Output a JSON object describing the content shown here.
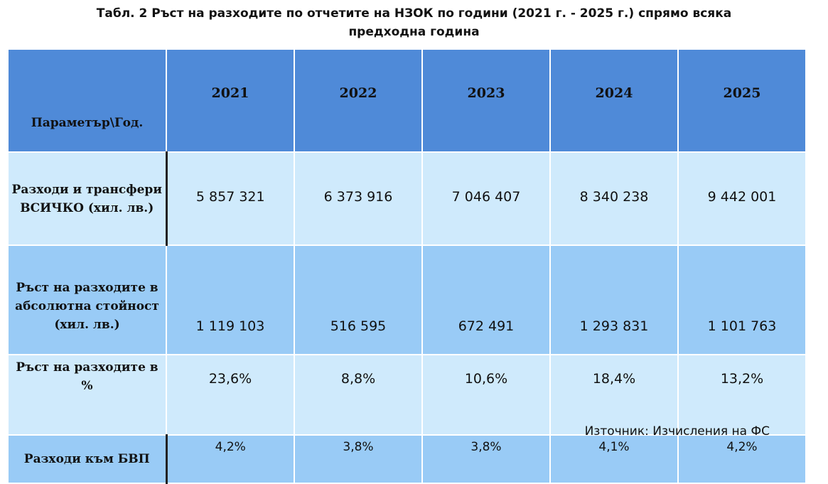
{
  "title": {
    "line1": "Табл. 2 Ръст на разходите по отчетите на НЗОК по години (2021 г. - 2025 г.) спрямо всяка",
    "line2": "предходна година"
  },
  "table": {
    "corner_header": "Параметър\\Год.",
    "years": [
      "2021",
      "2022",
      "2023",
      "2024",
      "2025"
    ],
    "rows": [
      {
        "label": "Разходи и трансфери ВСИЧКО (хил. лв.)",
        "values": [
          "5 857 321",
          "6 373 916",
          "7 046 407",
          "8 340 238",
          "9 442 001"
        ]
      },
      {
        "label": "Ръст на разходите в абсолютна стойност (хил. лв.)",
        "values": [
          "1 119 103",
          "516 595",
          "672 491",
          "1 293 831",
          "1 101 763"
        ]
      },
      {
        "label": "Ръст на разходите в %",
        "values": [
          "23,6%",
          "8,8%",
          "10,6%",
          "18,4%",
          "13,2%"
        ]
      },
      {
        "label": "Разходи към БВП",
        "values": [
          "4,2%",
          "3,8%",
          "3,8%",
          "4,1%",
          "4,2%"
        ]
      }
    ]
  },
  "source": "Източник: Изчисления на ФС",
  "colors": {
    "header_bg": "#4f8ad8",
    "light_row_bg": "#cfeafc",
    "mid_row_bg": "#99cbf6"
  }
}
